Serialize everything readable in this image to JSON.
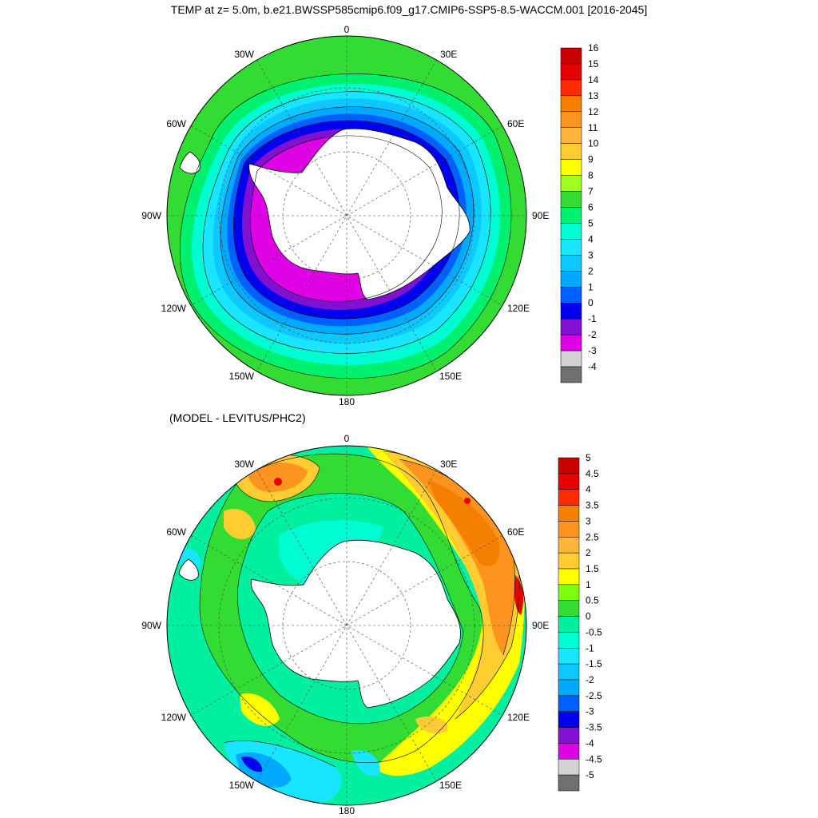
{
  "title": "TEMP at z=   5.0m, b.e21.BWSSP585cmip6.f09_g17.CMIP6-SSP5-8.5-WACCM.001 [2016-2045]",
  "diff_title": "(MODEL - LEVITUS/PHC2)",
  "lon_labels": {
    "n0": "0",
    "n30e": "30E",
    "n60e": "60E",
    "n90e": "90E",
    "n120e": "120E",
    "n150e": "150E",
    "n180": "180",
    "n150w": "150W",
    "n120w": "120W",
    "n90w": "90W",
    "n60w": "60W",
    "n30w": "30W"
  },
  "top_colorbar": {
    "labels": [
      "16",
      "15",
      "14",
      "13",
      "12",
      "11",
      "10",
      "9",
      "8",
      "7",
      "6",
      "5",
      "4",
      "3",
      "2",
      "1",
      "0",
      "-1",
      "-2",
      "-3",
      "-4"
    ],
    "colors": [
      "#c80000",
      "#e60000",
      "#ff2a00",
      "#f57f00",
      "#fd9420",
      "#ffb43c",
      "#ffcd32",
      "#ffff00",
      "#a0ff20",
      "#32dc32",
      "#00f070",
      "#00fcd2",
      "#18e6ff",
      "#0cc8ff",
      "#00aaff",
      "#0060ff",
      "#0000ee",
      "#8210d2",
      "#e000e6",
      "#d2d2d2",
      "#707070"
    ]
  },
  "bottom_colorbar": {
    "labels": [
      "5",
      "4.5",
      "4",
      "3.5",
      "3",
      "2.5",
      "2",
      "1.5",
      "1",
      "0.5",
      "0",
      "-0.5",
      "-1",
      "-1.5",
      "-2",
      "-2.5",
      "-3",
      "-3.5",
      "-4",
      "-4.5",
      "-5"
    ],
    "colors": [
      "#c80000",
      "#e60000",
      "#ff2a00",
      "#f57f00",
      "#fd9420",
      "#ffb43c",
      "#ffcd32",
      "#ffff00",
      "#7dff10",
      "#32dc32",
      "#00f0a0",
      "#00fcd2",
      "#18e6ff",
      "#0cc8ff",
      "#00aaff",
      "#0060ff",
      "#0000ee",
      "#8210d2",
      "#e000e6",
      "#d2d2d2",
      "#707070"
    ]
  }
}
